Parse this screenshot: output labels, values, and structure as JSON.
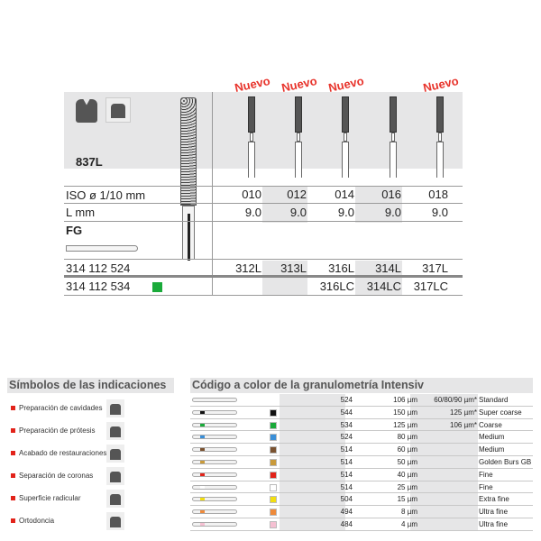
{
  "product": {
    "model": "837L",
    "new_badge": "Nuevo",
    "new_flags": [
      true,
      true,
      true,
      false,
      true
    ],
    "rows": {
      "iso": {
        "label": "ISO ø 1/10 mm",
        "values": [
          "010",
          "012",
          "014",
          "016",
          "018"
        ]
      },
      "length": {
        "label": "L mm",
        "values": [
          "9.0",
          "9.0",
          "9.0",
          "9.0",
          "9.0"
        ]
      },
      "shank": "FG",
      "ref1": {
        "label": "314 112 524",
        "values": [
          "312L",
          "313L",
          "316L",
          "314L",
          "317L"
        ]
      },
      "ref2": {
        "label": "314 112 534",
        "values": [
          "",
          "",
          "316LC",
          "314LC",
          "317LC"
        ],
        "swatch": "#1aaa3a"
      }
    }
  },
  "indications": {
    "title": "Símbolos de las indicaciones",
    "items": [
      {
        "label": "Preparación de cavidades",
        "icon": "cavity-prep-icon"
      },
      {
        "label": "Preparación de prótesis",
        "icon": "prosthesis-prep-icon"
      },
      {
        "label": "Acabado de restauraciones",
        "icon": "restoration-finish-icon"
      },
      {
        "label": "Separación de coronas",
        "icon": "crown-separation-icon"
      },
      {
        "label": "Superficie radicular",
        "icon": "root-surface-icon"
      },
      {
        "label": "Ortodoncia",
        "icon": "orthodontics-icon"
      }
    ]
  },
  "granulometry": {
    "title": "Código a color de la granulometría Intensiv",
    "rows": [
      {
        "color": "",
        "code": "524",
        "grit": "106 µm",
        "alt": "60/80/90 µm*",
        "name": "Standard"
      },
      {
        "color": "#111111",
        "code": "544",
        "grit": "150 µm",
        "alt": "125 µm*",
        "name": "Super coarse"
      },
      {
        "color": "#1aaa3a",
        "code": "534",
        "grit": "125 µm",
        "alt": "106 µm*",
        "name": "Coarse"
      },
      {
        "color": "#3a8fd8",
        "code": "524",
        "grit": "80 µm",
        "alt": "",
        "name": "Medium"
      },
      {
        "color": "#7a5230",
        "code": "514",
        "grit": "60 µm",
        "alt": "",
        "name": "Medium"
      },
      {
        "color": "#c99a3a",
        "code": "514",
        "grit": "50 µm",
        "alt": "",
        "name": "Golden Burs GB"
      },
      {
        "color": "#e2231a",
        "code": "514",
        "grit": "40 µm",
        "alt": "",
        "name": "Fine"
      },
      {
        "color": "#ffffff",
        "code": "514",
        "grit": "25 µm",
        "alt": "",
        "name": "Fine"
      },
      {
        "color": "#f2de10",
        "code": "504",
        "grit": "15 µm",
        "alt": "",
        "name": "Extra fine"
      },
      {
        "color": "#ee8a3a",
        "code": "494",
        "grit": "8 µm",
        "alt": "",
        "name": "Ultra fine"
      },
      {
        "color": "#f5c0d2",
        "code": "484",
        "grit": "4 µm",
        "alt": "",
        "name": "Ultra fine"
      }
    ]
  }
}
